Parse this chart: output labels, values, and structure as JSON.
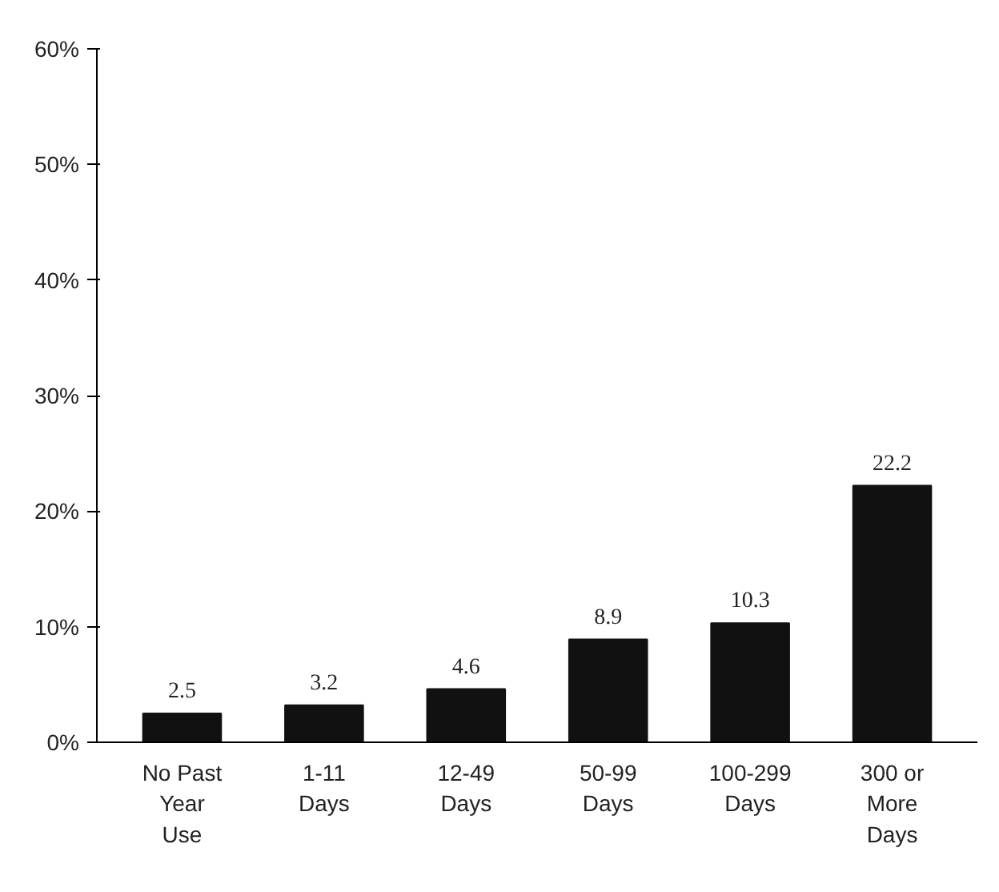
{
  "chart_data": {
    "type": "bar",
    "categories": [
      "No Past\nYear\nUse",
      "1-11\nDays",
      "12-49\nDays",
      "50-99\nDays",
      "100-299\nDays",
      "300 or\nMore\nDays"
    ],
    "values": [
      2.5,
      3.2,
      4.6,
      8.9,
      10.3,
      22.2
    ],
    "color": "#111111",
    "ylim": [
      0,
      60
    ],
    "yticks": [
      {
        "value": 0,
        "label": "0%"
      },
      {
        "value": 10,
        "label": "10%"
      },
      {
        "value": 20,
        "label": "20%"
      },
      {
        "value": 30,
        "label": "30%"
      },
      {
        "value": 40,
        "label": "40%"
      },
      {
        "value": 50,
        "label": "50%"
      },
      {
        "value": 60,
        "label": "60%"
      }
    ],
    "data_labels": true,
    "grid": false
  }
}
